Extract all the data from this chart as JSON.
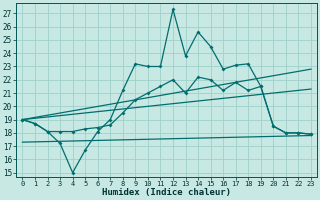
{
  "xlabel": "Humidex (Indice chaleur)",
  "xlim": [
    -0.5,
    23.5
  ],
  "ylim": [
    14.7,
    27.8
  ],
  "yticks": [
    15,
    16,
    17,
    18,
    19,
    20,
    21,
    22,
    23,
    24,
    25,
    26,
    27
  ],
  "xticks": [
    0,
    1,
    2,
    3,
    4,
    5,
    6,
    7,
    8,
    9,
    10,
    11,
    12,
    13,
    14,
    15,
    16,
    17,
    18,
    19,
    20,
    21,
    22,
    23
  ],
  "bg_color": "#c8e8e4",
  "grid_color": "#9fcfca",
  "line_color": "#006e6e",
  "line1_y": [
    19.0,
    18.7,
    18.1,
    17.2,
    15.0,
    16.7,
    18.1,
    19.0,
    21.2,
    23.2,
    23.0,
    23.0,
    27.3,
    23.8,
    25.6,
    24.5,
    22.8,
    23.1,
    23.2,
    21.5,
    18.5,
    18.0,
    18.0,
    17.9
  ],
  "line2_y": [
    19.0,
    18.7,
    18.1,
    18.1,
    18.1,
    18.3,
    18.4,
    18.6,
    19.5,
    20.5,
    21.0,
    21.5,
    22.0,
    21.0,
    22.2,
    22.0,
    21.2,
    21.8,
    21.2,
    21.5,
    18.5,
    18.0,
    18.0,
    17.9
  ],
  "trend1_y": [
    19.0,
    22.8
  ],
  "trend2_y": [
    19.0,
    21.3
  ],
  "trend3_y": [
    17.3,
    17.8
  ]
}
